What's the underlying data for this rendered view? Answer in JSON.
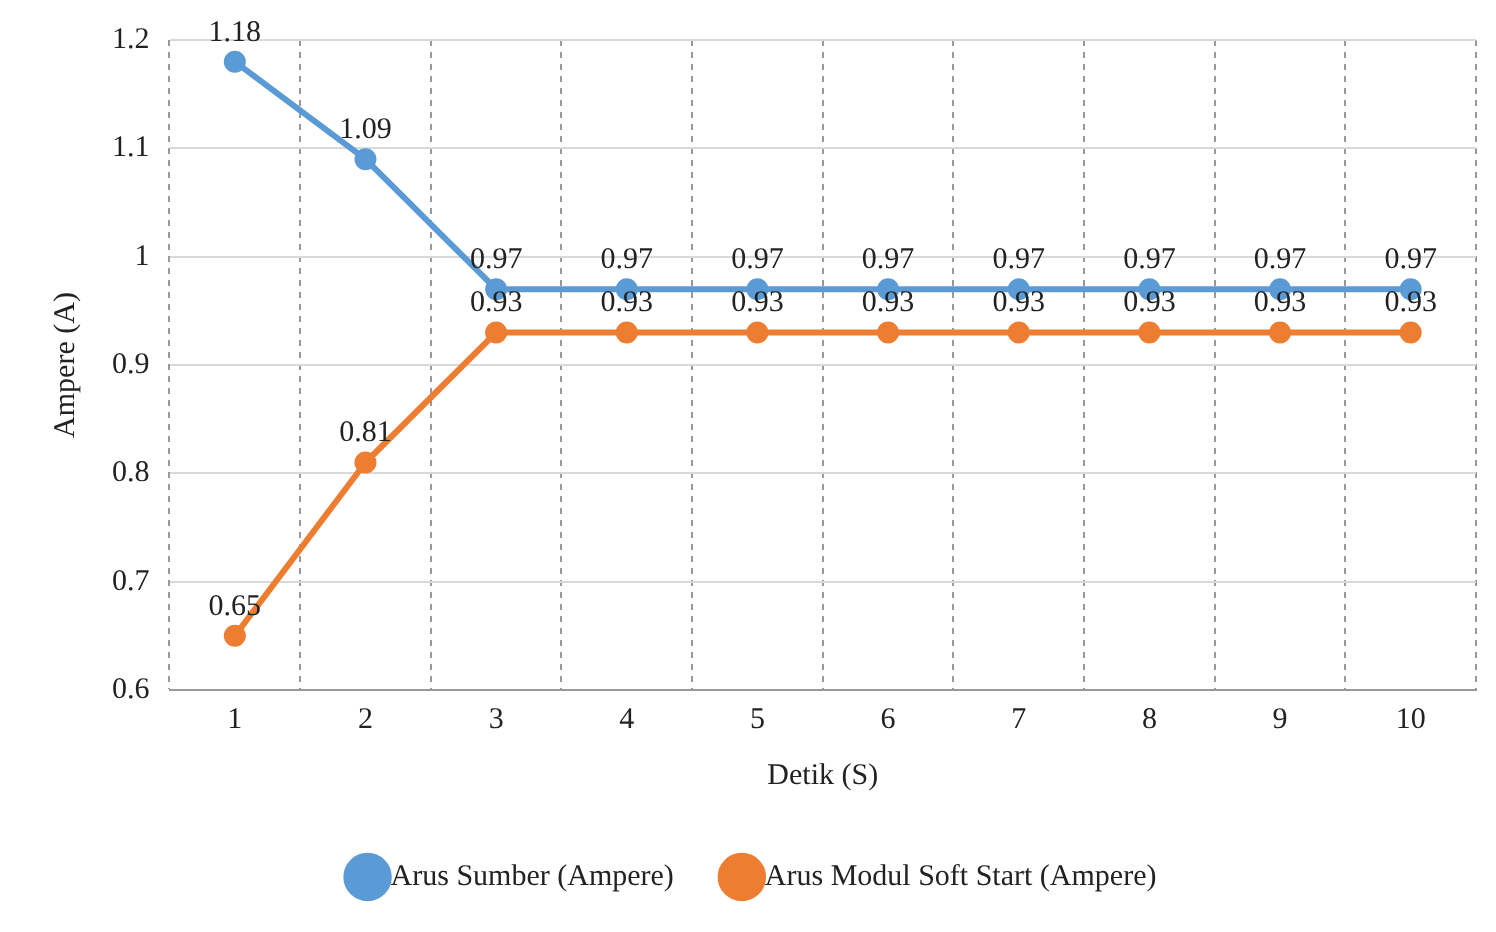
{
  "chart_data": {
    "type": "line",
    "xlabel": "Detik (S)",
    "ylabel": "Ampere (A)",
    "categories": [
      "1",
      "2",
      "3",
      "4",
      "5",
      "6",
      "7",
      "8",
      "9",
      "10"
    ],
    "series": [
      {
        "name": "Arus Sumber (Ampere)",
        "color": "#5b9bd5",
        "values": [
          1.18,
          1.09,
          0.97,
          0.97,
          0.97,
          0.97,
          0.97,
          0.97,
          0.97,
          0.97
        ]
      },
      {
        "name": "Arus Modul Soft Start (Ampere)",
        "color": "#ed7d31",
        "values": [
          0.65,
          0.81,
          0.93,
          0.93,
          0.93,
          0.93,
          0.93,
          0.93,
          0.93,
          0.93
        ]
      }
    ],
    "ylim": [
      0.6,
      1.2
    ],
    "yticks": [
      0.6,
      0.7,
      0.8,
      0.9,
      1,
      1.1,
      1.2
    ],
    "grid": true,
    "legend": "bottom",
    "marker": "circle",
    "line_style": "solid",
    "data_labels": true
  }
}
